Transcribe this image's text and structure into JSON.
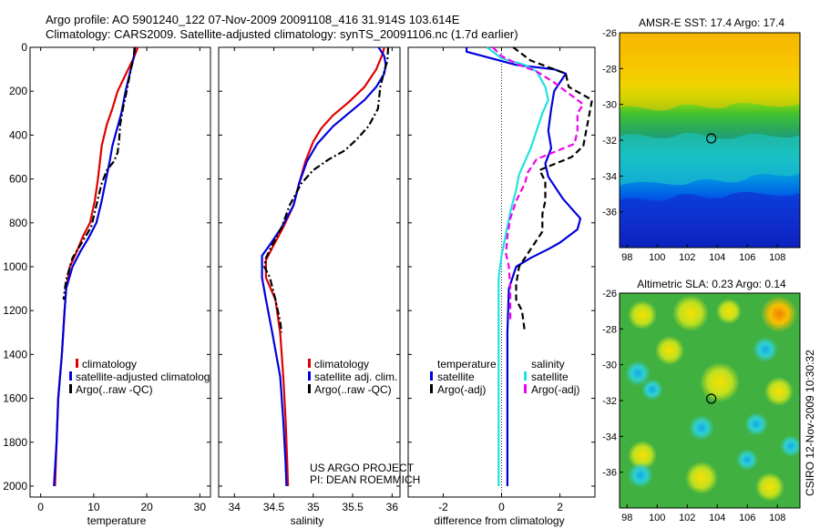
{
  "header": {
    "title_line1": "Argo profile: AO 5901240_122 07-Nov-2009 20091108_416 31.914S 103.614E",
    "title_line2": "Climatology: CARS2009. Satellite-adjusted climatology: synTS_20091106.nc (1.7d earlier)"
  },
  "footer": {
    "project_line1": "US ARGO PROJECT",
    "project_line2": "PI: DEAN ROEMMICH",
    "credit": "CSIRO 12-Nov-2009 10:30:32"
  },
  "colors": {
    "red": "#e00000",
    "blue": "#0000dd",
    "black": "#000000",
    "cyan": "#22e0e0",
    "magenta": "#ee00ee"
  },
  "chart_data": [
    {
      "type": "line",
      "name": "temperature",
      "xlabel": "temperature",
      "ylabel": "",
      "xlim": [
        -2,
        32
      ],
      "ylim": [
        0,
        2050
      ],
      "y_reversed": true,
      "xticks": [
        0,
        10,
        20,
        30
      ],
      "yticks": [
        0,
        200,
        400,
        600,
        800,
        1000,
        1200,
        1400,
        1600,
        1800,
        2000
      ],
      "legend": [
        "climatology",
        "satellite-adjusted climatolog",
        "Argo(..raw -QC)"
      ],
      "series": [
        {
          "name": "climatology",
          "color": "red",
          "style": "solid",
          "points": [
            [
              18.3,
              0
            ],
            [
              18,
              20
            ],
            [
              17.5,
              50
            ],
            [
              16.5,
              100
            ],
            [
              15.5,
              150
            ],
            [
              14.5,
              200
            ],
            [
              13.5,
              280
            ],
            [
              12.5,
              350
            ],
            [
              11.5,
              450
            ],
            [
              10.8,
              600
            ],
            [
              10.2,
              700
            ],
            [
              9.3,
              800
            ],
            [
              8,
              860
            ],
            [
              7,
              920
            ],
            [
              5.5,
              1000
            ],
            [
              4.8,
              1100
            ],
            [
              4.5,
              1200
            ],
            [
              4,
              1400
            ],
            [
              3.3,
              1600
            ],
            [
              3,
              1800
            ],
            [
              2.7,
              2000
            ]
          ]
        },
        {
          "name": "satellite-adjusted climatolog",
          "color": "blue",
          "style": "solid",
          "points": [
            [
              17.8,
              0
            ],
            [
              17.5,
              50
            ],
            [
              17,
              100
            ],
            [
              16.5,
              150
            ],
            [
              16,
              200
            ],
            [
              15.2,
              300
            ],
            [
              14.3,
              380
            ],
            [
              13.5,
              450
            ],
            [
              13,
              520
            ],
            [
              12.5,
              580
            ],
            [
              11.5,
              700
            ],
            [
              10.5,
              800
            ],
            [
              9,
              870
            ],
            [
              7.5,
              930
            ],
            [
              6,
              1000
            ],
            [
              4.8,
              1100
            ],
            [
              4.5,
              1200
            ],
            [
              4,
              1400
            ],
            [
              3.3,
              1600
            ],
            [
              3,
              1800
            ],
            [
              2.5,
              2000
            ]
          ]
        },
        {
          "name": "Argo(..raw -QC)",
          "color": "black",
          "style": "dashdot",
          "points": [
            [
              17.7,
              0
            ],
            [
              17.5,
              50
            ],
            [
              17,
              100
            ],
            [
              16.6,
              150
            ],
            [
              16.2,
              200
            ],
            [
              15.5,
              280
            ],
            [
              15,
              350
            ],
            [
              14.8,
              420
            ],
            [
              14.5,
              480
            ],
            [
              13.8,
              520
            ],
            [
              12.5,
              560
            ],
            [
              11.5,
              620
            ],
            [
              10.5,
              720
            ],
            [
              9.5,
              820
            ],
            [
              8,
              880
            ],
            [
              6,
              960
            ],
            [
              4.8,
              1060
            ],
            [
              4.3,
              1150
            ]
          ]
        }
      ]
    },
    {
      "type": "line",
      "name": "salinity",
      "xlabel": "salinity",
      "ylabel": "",
      "xlim": [
        33.8,
        36.1
      ],
      "ylim": [
        0,
        2050
      ],
      "y_reversed": true,
      "xticks": [
        34,
        34.5,
        35,
        35.5,
        36
      ],
      "legend": [
        "climatology",
        "satellite adj. clim.",
        "Argo(..raw -QC)"
      ],
      "series": [
        {
          "name": "climatology",
          "color": "red",
          "style": "solid",
          "points": [
            [
              35.9,
              0
            ],
            [
              35.88,
              30
            ],
            [
              35.8,
              100
            ],
            [
              35.65,
              180
            ],
            [
              35.45,
              250
            ],
            [
              35.25,
              310
            ],
            [
              35.1,
              370
            ],
            [
              35,
              430
            ],
            [
              34.9,
              520
            ],
            [
              34.82,
              620
            ],
            [
              34.75,
              720
            ],
            [
              34.62,
              820
            ],
            [
              34.5,
              900
            ],
            [
              34.4,
              970
            ],
            [
              34.4,
              1050
            ],
            [
              34.52,
              1150
            ],
            [
              34.58,
              1300
            ],
            [
              34.62,
              1500
            ],
            [
              34.65,
              1700
            ],
            [
              34.67,
              1900
            ],
            [
              34.68,
              2000
            ]
          ]
        },
        {
          "name": "satellite adj. clim.",
          "color": "blue",
          "style": "solid",
          "points": [
            [
              35.83,
              0
            ],
            [
              35.9,
              40
            ],
            [
              35.92,
              80
            ],
            [
              35.9,
              120
            ],
            [
              35.8,
              180
            ],
            [
              35.65,
              240
            ],
            [
              35.45,
              300
            ],
            [
              35.25,
              360
            ],
            [
              35.05,
              440
            ],
            [
              34.92,
              520
            ],
            [
              34.82,
              620
            ],
            [
              34.75,
              720
            ],
            [
              34.6,
              820
            ],
            [
              34.45,
              900
            ],
            [
              34.35,
              950
            ],
            [
              34.35,
              1050
            ],
            [
              34.4,
              1150
            ],
            [
              34.48,
              1300
            ],
            [
              34.58,
              1500
            ],
            [
              34.62,
              1700
            ],
            [
              34.65,
              1900
            ],
            [
              34.66,
              2000
            ]
          ]
        },
        {
          "name": "Argo(..raw -QC)",
          "color": "black",
          "style": "dashdot",
          "points": [
            [
              35.95,
              0
            ],
            [
              35.94,
              60
            ],
            [
              35.9,
              110
            ],
            [
              35.85,
              180
            ],
            [
              35.82,
              280
            ],
            [
              35.7,
              360
            ],
            [
              35.55,
              420
            ],
            [
              35.4,
              470
            ],
            [
              35.2,
              510
            ],
            [
              35,
              560
            ],
            [
              34.85,
              620
            ],
            [
              34.7,
              720
            ],
            [
              34.6,
              820
            ],
            [
              34.48,
              900
            ],
            [
              34.4,
              960
            ],
            [
              34.38,
              1000
            ],
            [
              34.45,
              1050
            ],
            [
              34.52,
              1150
            ],
            [
              34.58,
              1250
            ],
            [
              34.6,
              1300
            ]
          ]
        }
      ]
    },
    {
      "type": "line",
      "name": "difference",
      "xlabel": "difference from climatology",
      "ylabel": "",
      "xlim": [
        -3.2,
        3.2
      ],
      "ylim": [
        0,
        2050
      ],
      "y_reversed": true,
      "xticks": [
        -2,
        0,
        2
      ],
      "legend_groups": [
        {
          "title": "temperature",
          "entries": [
            "satellite",
            "Argo(-adj)"
          ]
        },
        {
          "title": "salinity",
          "entries": [
            "satellite",
            "Argo(-adj)"
          ]
        }
      ],
      "series": [
        {
          "name": "temperature satellite",
          "color": "blue",
          "style": "solid",
          "points": [
            [
              -1.2,
              0
            ],
            [
              -1.2,
              20
            ],
            [
              0.5,
              80
            ],
            [
              1.8,
              100
            ],
            [
              2.2,
              120
            ],
            [
              1.8,
              200
            ],
            [
              1.7,
              280
            ],
            [
              1.6,
              380
            ],
            [
              1.7,
              460
            ],
            [
              1.5,
              530
            ],
            [
              1.6,
              590
            ],
            [
              2.1,
              690
            ],
            [
              2.7,
              780
            ],
            [
              2.6,
              830
            ],
            [
              2,
              890
            ],
            [
              1.6,
              920
            ],
            [
              1,
              960
            ],
            [
              0.5,
              1000
            ],
            [
              0.25,
              1100
            ],
            [
              0.2,
              1300
            ],
            [
              0.2,
              1600
            ],
            [
              0.2,
              1800
            ],
            [
              0.2,
              2000
            ]
          ]
        },
        {
          "name": "temperature Argo(-adj)",
          "color": "black",
          "style": "dashed",
          "points": [
            [
              0.4,
              0
            ],
            [
              1,
              60
            ],
            [
              2.2,
              120
            ],
            [
              2.3,
              180
            ],
            [
              2.7,
              210
            ],
            [
              3.1,
              240
            ],
            [
              2.8,
              450
            ],
            [
              2.4,
              500
            ],
            [
              1.3,
              560
            ],
            [
              1.5,
              610
            ],
            [
              1.5,
              700
            ],
            [
              1.4,
              760
            ],
            [
              1.4,
              840
            ],
            [
              1,
              920
            ],
            [
              0.6,
              1000
            ],
            [
              0.5,
              1080
            ],
            [
              0.5,
              1150
            ],
            [
              0.7,
              1200
            ],
            [
              0.8,
              1300
            ]
          ]
        },
        {
          "name": "salinity satellite",
          "color": "cyan",
          "style": "solid",
          "points": [
            [
              -0.5,
              0
            ],
            [
              0,
              50
            ],
            [
              0.8,
              80
            ],
            [
              1.2,
              110
            ],
            [
              1.5,
              180
            ],
            [
              1.6,
              240
            ],
            [
              1.4,
              300
            ],
            [
              1.2,
              380
            ],
            [
              1,
              460
            ],
            [
              0.8,
              520
            ],
            [
              0.6,
              580
            ],
            [
              0.5,
              650
            ],
            [
              0.3,
              750
            ],
            [
              0.15,
              850
            ],
            [
              0,
              950
            ],
            [
              -0.1,
              1050
            ],
            [
              -0.1,
              1200
            ],
            [
              -0.1,
              1500
            ],
            [
              -0.1,
              1800
            ],
            [
              -0.1,
              2000
            ]
          ]
        },
        {
          "name": "salinity Argo(-adj)",
          "color": "magenta",
          "style": "dashed",
          "points": [
            [
              -0.3,
              0
            ],
            [
              0,
              40
            ],
            [
              0.6,
              80
            ],
            [
              1.2,
              110
            ],
            [
              1.8,
              160
            ],
            [
              2.5,
              230
            ],
            [
              2.8,
              260
            ],
            [
              2.6,
              300
            ],
            [
              2.6,
              380
            ],
            [
              2.5,
              440
            ],
            [
              1.2,
              510
            ],
            [
              0.9,
              570
            ],
            [
              0.8,
              620
            ],
            [
              0.5,
              700
            ],
            [
              0.3,
              780
            ],
            [
              0.2,
              860
            ],
            [
              0.15,
              940
            ],
            [
              0.25,
              1000
            ],
            [
              0.3,
              1100
            ],
            [
              0.3,
              1250
            ]
          ]
        }
      ]
    },
    {
      "type": "heatmap",
      "name": "sst_map",
      "title": "AMSR-E SST: 17.4 Argo: 17.4",
      "xlim": [
        97.5,
        109.5
      ],
      "ylim": [
        -38,
        -26
      ],
      "xticks": [
        98,
        100,
        102,
        104,
        106,
        108
      ],
      "yticks": [
        -26,
        -28,
        -30,
        -32,
        -34,
        -36
      ],
      "marker": [
        103.6,
        -31.9
      ]
    },
    {
      "type": "heatmap",
      "name": "sla_map",
      "title": "Altimetric SLA: 0.23 Argo: 0.14",
      "xlim": [
        97.5,
        109.5
      ],
      "ylim": [
        -38,
        -26
      ],
      "xticks": [
        98,
        100,
        102,
        104,
        106,
        108
      ],
      "yticks": [
        -26,
        -28,
        -30,
        -32,
        -34,
        -36
      ],
      "marker": [
        103.6,
        -31.9
      ]
    }
  ]
}
